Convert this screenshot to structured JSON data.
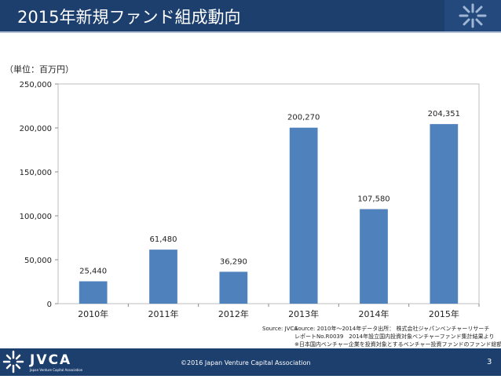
{
  "header": {
    "title": "2015年新規ファンド組成動向"
  },
  "chart_data": {
    "type": "bar",
    "title": "2015年新規ファンド組成動向",
    "unit_label": "（単位：百万円）",
    "categories": [
      "2010年",
      "2011年",
      "2012年",
      "2013年",
      "2014年",
      "2015年"
    ],
    "values": [
      25440,
      61480,
      36290,
      200270,
      107580,
      204351
    ],
    "value_labels": [
      "25,440",
      "61,480",
      "36,290",
      "200,270",
      "107,580",
      "204,351"
    ],
    "ylim": [
      0,
      250000
    ],
    "y_ticks": [
      0,
      50000,
      100000,
      150000,
      200000,
      250000
    ],
    "y_tick_labels": [
      "0",
      "50,000",
      "100,000",
      "150,000",
      "200,000",
      "250,000"
    ],
    "xlabel": "",
    "ylabel": "",
    "bar_color": "#4f81bd",
    "grid": false
  },
  "source": {
    "label": "Source: JVCA",
    "lines": [
      "Source: 2010年～2014年データ出所： 株式会社ジャパンベンチャーリサーチ",
      "レポートNo.R0039　2014年設立国内投資対象ベンチャーファンド集計結果より",
      "※日本国内ベンチャー企業を投資対象とするベンチャー投資ファンドのファンド総額。"
    ]
  },
  "footer": {
    "logo_text": "JVCA",
    "logo_subtext": "Japan Venture Capital Association",
    "copyright": "©2016 Japan Venture Capital Association",
    "page_number": "3"
  },
  "colors": {
    "header_bg": "#1d3f6e",
    "bar": "#4f81bd"
  }
}
